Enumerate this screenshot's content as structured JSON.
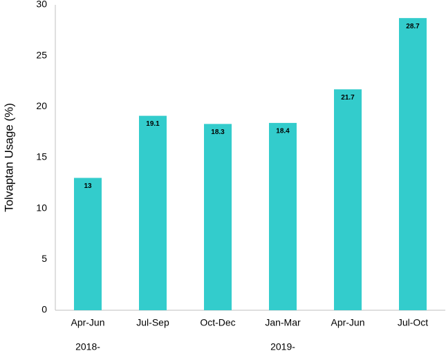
{
  "chart_data": {
    "type": "bar",
    "y_label": "Tolvaptan Usage (%)",
    "categories": [
      "Apr-Jun",
      "Jul-Sep",
      "Oct-Dec",
      "Jan-Mar",
      "Apr-Jun",
      "Jul-Oct"
    ],
    "group_labels": [
      "2018-",
      null,
      null,
      "2019-",
      null,
      null
    ],
    "values": [
      13,
      19.1,
      18.3,
      18.4,
      21.7,
      28.7
    ],
    "color": "#33cccc",
    "ylim": [
      0,
      30
    ],
    "yticks": [
      0,
      5,
      10,
      15,
      20,
      25,
      30
    ],
    "grid": false
  }
}
